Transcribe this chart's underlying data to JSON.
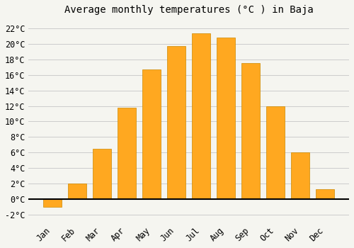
{
  "months": [
    "Jan",
    "Feb",
    "Mar",
    "Apr",
    "May",
    "Jun",
    "Jul",
    "Aug",
    "Sep",
    "Oct",
    "Nov",
    "Dec"
  ],
  "values": [
    -1.0,
    2.0,
    6.5,
    11.8,
    16.7,
    19.7,
    21.4,
    20.8,
    17.5,
    12.0,
    6.0,
    1.3
  ],
  "bar_color": "#FFA820",
  "bar_edge_color": "#CC8800",
  "title": "Average monthly temperatures (°C ) in Baja",
  "ylim": [
    -3,
    23
  ],
  "yticks": [
    -2,
    0,
    2,
    4,
    6,
    8,
    10,
    12,
    14,
    16,
    18,
    20,
    22
  ],
  "background_color": "#f5f5f0",
  "plot_bg_color": "#f5f5f0",
  "grid_color": "#cccccc",
  "title_fontsize": 10,
  "tick_fontsize": 8.5,
  "zero_line_color": "#000000"
}
